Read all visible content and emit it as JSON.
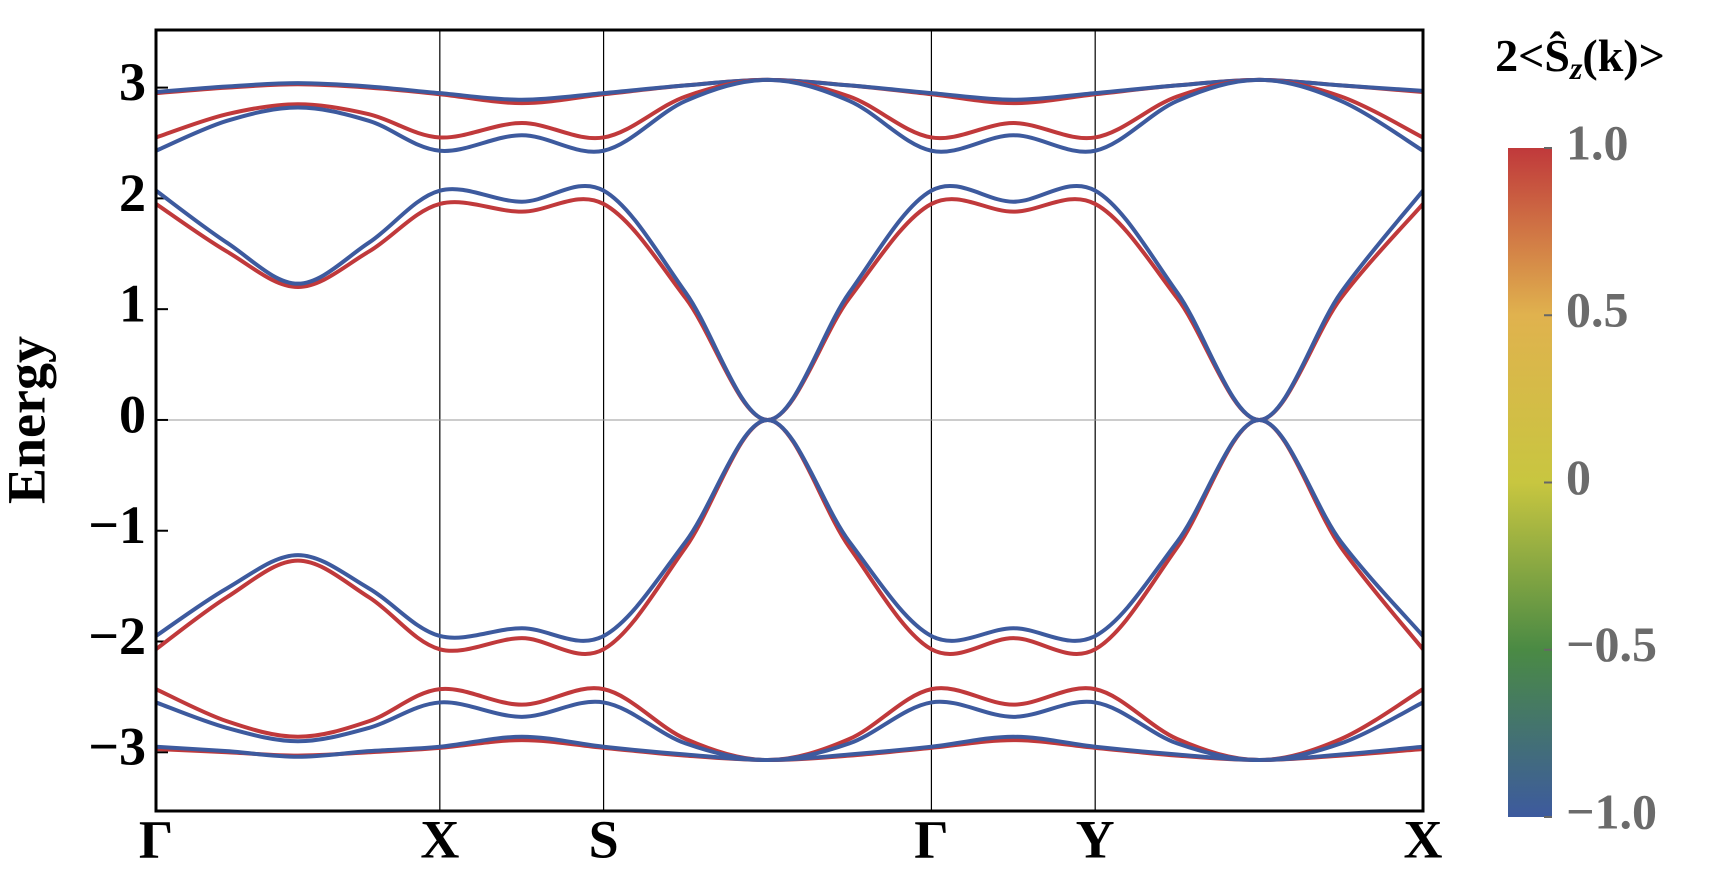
{
  "chart_data": {
    "type": "line",
    "y_label": "Energy",
    "x": [
      0,
      0.25,
      0.5,
      0.75,
      1,
      1.289,
      1.577,
      1.866,
      2.155,
      2.443,
      2.732,
      3.021,
      3.309,
      3.598,
      3.887,
      4.175,
      4.464
    ],
    "xlim": [
      0,
      4.464
    ],
    "xticks": [
      {
        "value": 0,
        "label": "Γ"
      },
      {
        "value": 1,
        "label": "X"
      },
      {
        "value": 1.577,
        "label": "S"
      },
      {
        "value": 2.732,
        "label": "Γ"
      },
      {
        "value": 3.309,
        "label": "Y"
      },
      {
        "value": 4.464,
        "label": "X"
      }
    ],
    "ylim": [
      -3.53,
      3.52
    ],
    "yticks": [
      {
        "value": -3,
        "label": "−3"
      },
      {
        "value": -2,
        "label": "−2"
      },
      {
        "value": -1,
        "label": "−1"
      },
      0,
      1,
      2,
      3
    ],
    "xgrid": true,
    "zero_line": true,
    "series": [
      {
        "color": "#c0393b",
        "values": [
          2.95,
          3.0,
          3.03,
          3.0,
          2.94,
          2.86,
          2.94,
          3.02,
          3.07,
          3.02,
          2.94,
          2.86,
          2.94,
          3.02,
          3.07,
          3.02,
          2.96
        ]
      },
      {
        "color": "#3d5a9e",
        "values": [
          2.96,
          3.01,
          3.04,
          3.01,
          2.95,
          2.89,
          2.95,
          3.02,
          3.07,
          3.02,
          2.95,
          2.89,
          2.95,
          3.02,
          3.07,
          3.02,
          2.97
        ]
      },
      {
        "color": "#c0393b",
        "values": [
          2.55,
          2.76,
          2.85,
          2.76,
          2.55,
          2.68,
          2.55,
          2.92,
          3.07,
          2.92,
          2.55,
          2.68,
          2.55,
          2.92,
          3.07,
          2.92,
          2.55
        ]
      },
      {
        "color": "#3d5a9e",
        "values": [
          2.43,
          2.7,
          2.82,
          2.7,
          2.43,
          2.57,
          2.43,
          2.88,
          3.07,
          2.88,
          2.43,
          2.57,
          2.43,
          2.88,
          3.07,
          2.88,
          2.43
        ]
      },
      {
        "color": "#c0393b",
        "values": [
          1.95,
          1.52,
          1.2,
          1.52,
          1.95,
          1.88,
          1.95,
          1.1,
          0,
          1.1,
          1.95,
          1.88,
          1.95,
          1.1,
          0,
          1.1,
          1.95
        ]
      },
      {
        "color": "#3d5a9e",
        "values": [
          2.07,
          1.6,
          1.23,
          1.6,
          2.07,
          1.97,
          2.07,
          1.15,
          0,
          1.15,
          2.07,
          1.97,
          2.07,
          1.15,
          0,
          1.15,
          2.07
        ]
      },
      {
        "color": "#c0393b",
        "values": [
          -2.07,
          -1.6,
          -1.27,
          -1.6,
          -2.07,
          -1.97,
          -2.07,
          -1.15,
          0,
          -1.15,
          -2.07,
          -1.97,
          -2.07,
          -1.15,
          0,
          -1.15,
          -2.07
        ]
      },
      {
        "color": "#3d5a9e",
        "values": [
          -1.95,
          -1.52,
          -1.22,
          -1.52,
          -1.95,
          -1.88,
          -1.95,
          -1.1,
          0,
          -1.1,
          -1.95,
          -1.88,
          -1.95,
          -1.1,
          0,
          -1.1,
          -1.95
        ]
      },
      {
        "color": "#c0393b",
        "values": [
          -2.43,
          -2.72,
          -2.86,
          -2.72,
          -2.43,
          -2.57,
          -2.43,
          -2.88,
          -3.07,
          -2.88,
          -2.43,
          -2.57,
          -2.43,
          -2.88,
          -3.07,
          -2.88,
          -2.43
        ]
      },
      {
        "color": "#3d5a9e",
        "values": [
          -2.55,
          -2.78,
          -2.9,
          -2.78,
          -2.55,
          -2.68,
          -2.55,
          -2.92,
          -3.07,
          -2.92,
          -2.55,
          -2.68,
          -2.55,
          -2.92,
          -3.07,
          -2.92,
          -2.55
        ]
      },
      {
        "color": "#c0393b",
        "values": [
          -2.97,
          -3.0,
          -3.03,
          -3.0,
          -2.96,
          -2.89,
          -2.96,
          -3.03,
          -3.07,
          -3.03,
          -2.96,
          -2.89,
          -2.96,
          -3.03,
          -3.07,
          -3.03,
          -2.97
        ]
      },
      {
        "color": "#3d5a9e",
        "values": [
          -2.95,
          -2.99,
          -3.04,
          -2.99,
          -2.95,
          -2.86,
          -2.95,
          -3.02,
          -3.07,
          -3.02,
          -2.95,
          -2.86,
          -2.95,
          -3.02,
          -3.07,
          -3.02,
          -2.95
        ]
      }
    ],
    "colorbar": {
      "title": [
        "2<Ŝ",
        "z",
        "(k)>"
      ],
      "lim": [
        -1,
        1
      ],
      "colorscale": [
        "#3d5a9e",
        "#4a8a44",
        "#c8c640",
        "#e0b24e",
        "#c0393b"
      ],
      "ticks": [
        {
          "value": 1,
          "label": "1.0"
        },
        0.5,
        0,
        {
          "value": -0.5,
          "label": "−0.5"
        },
        {
          "value": -1,
          "label": "−1.0"
        }
      ]
    }
  }
}
